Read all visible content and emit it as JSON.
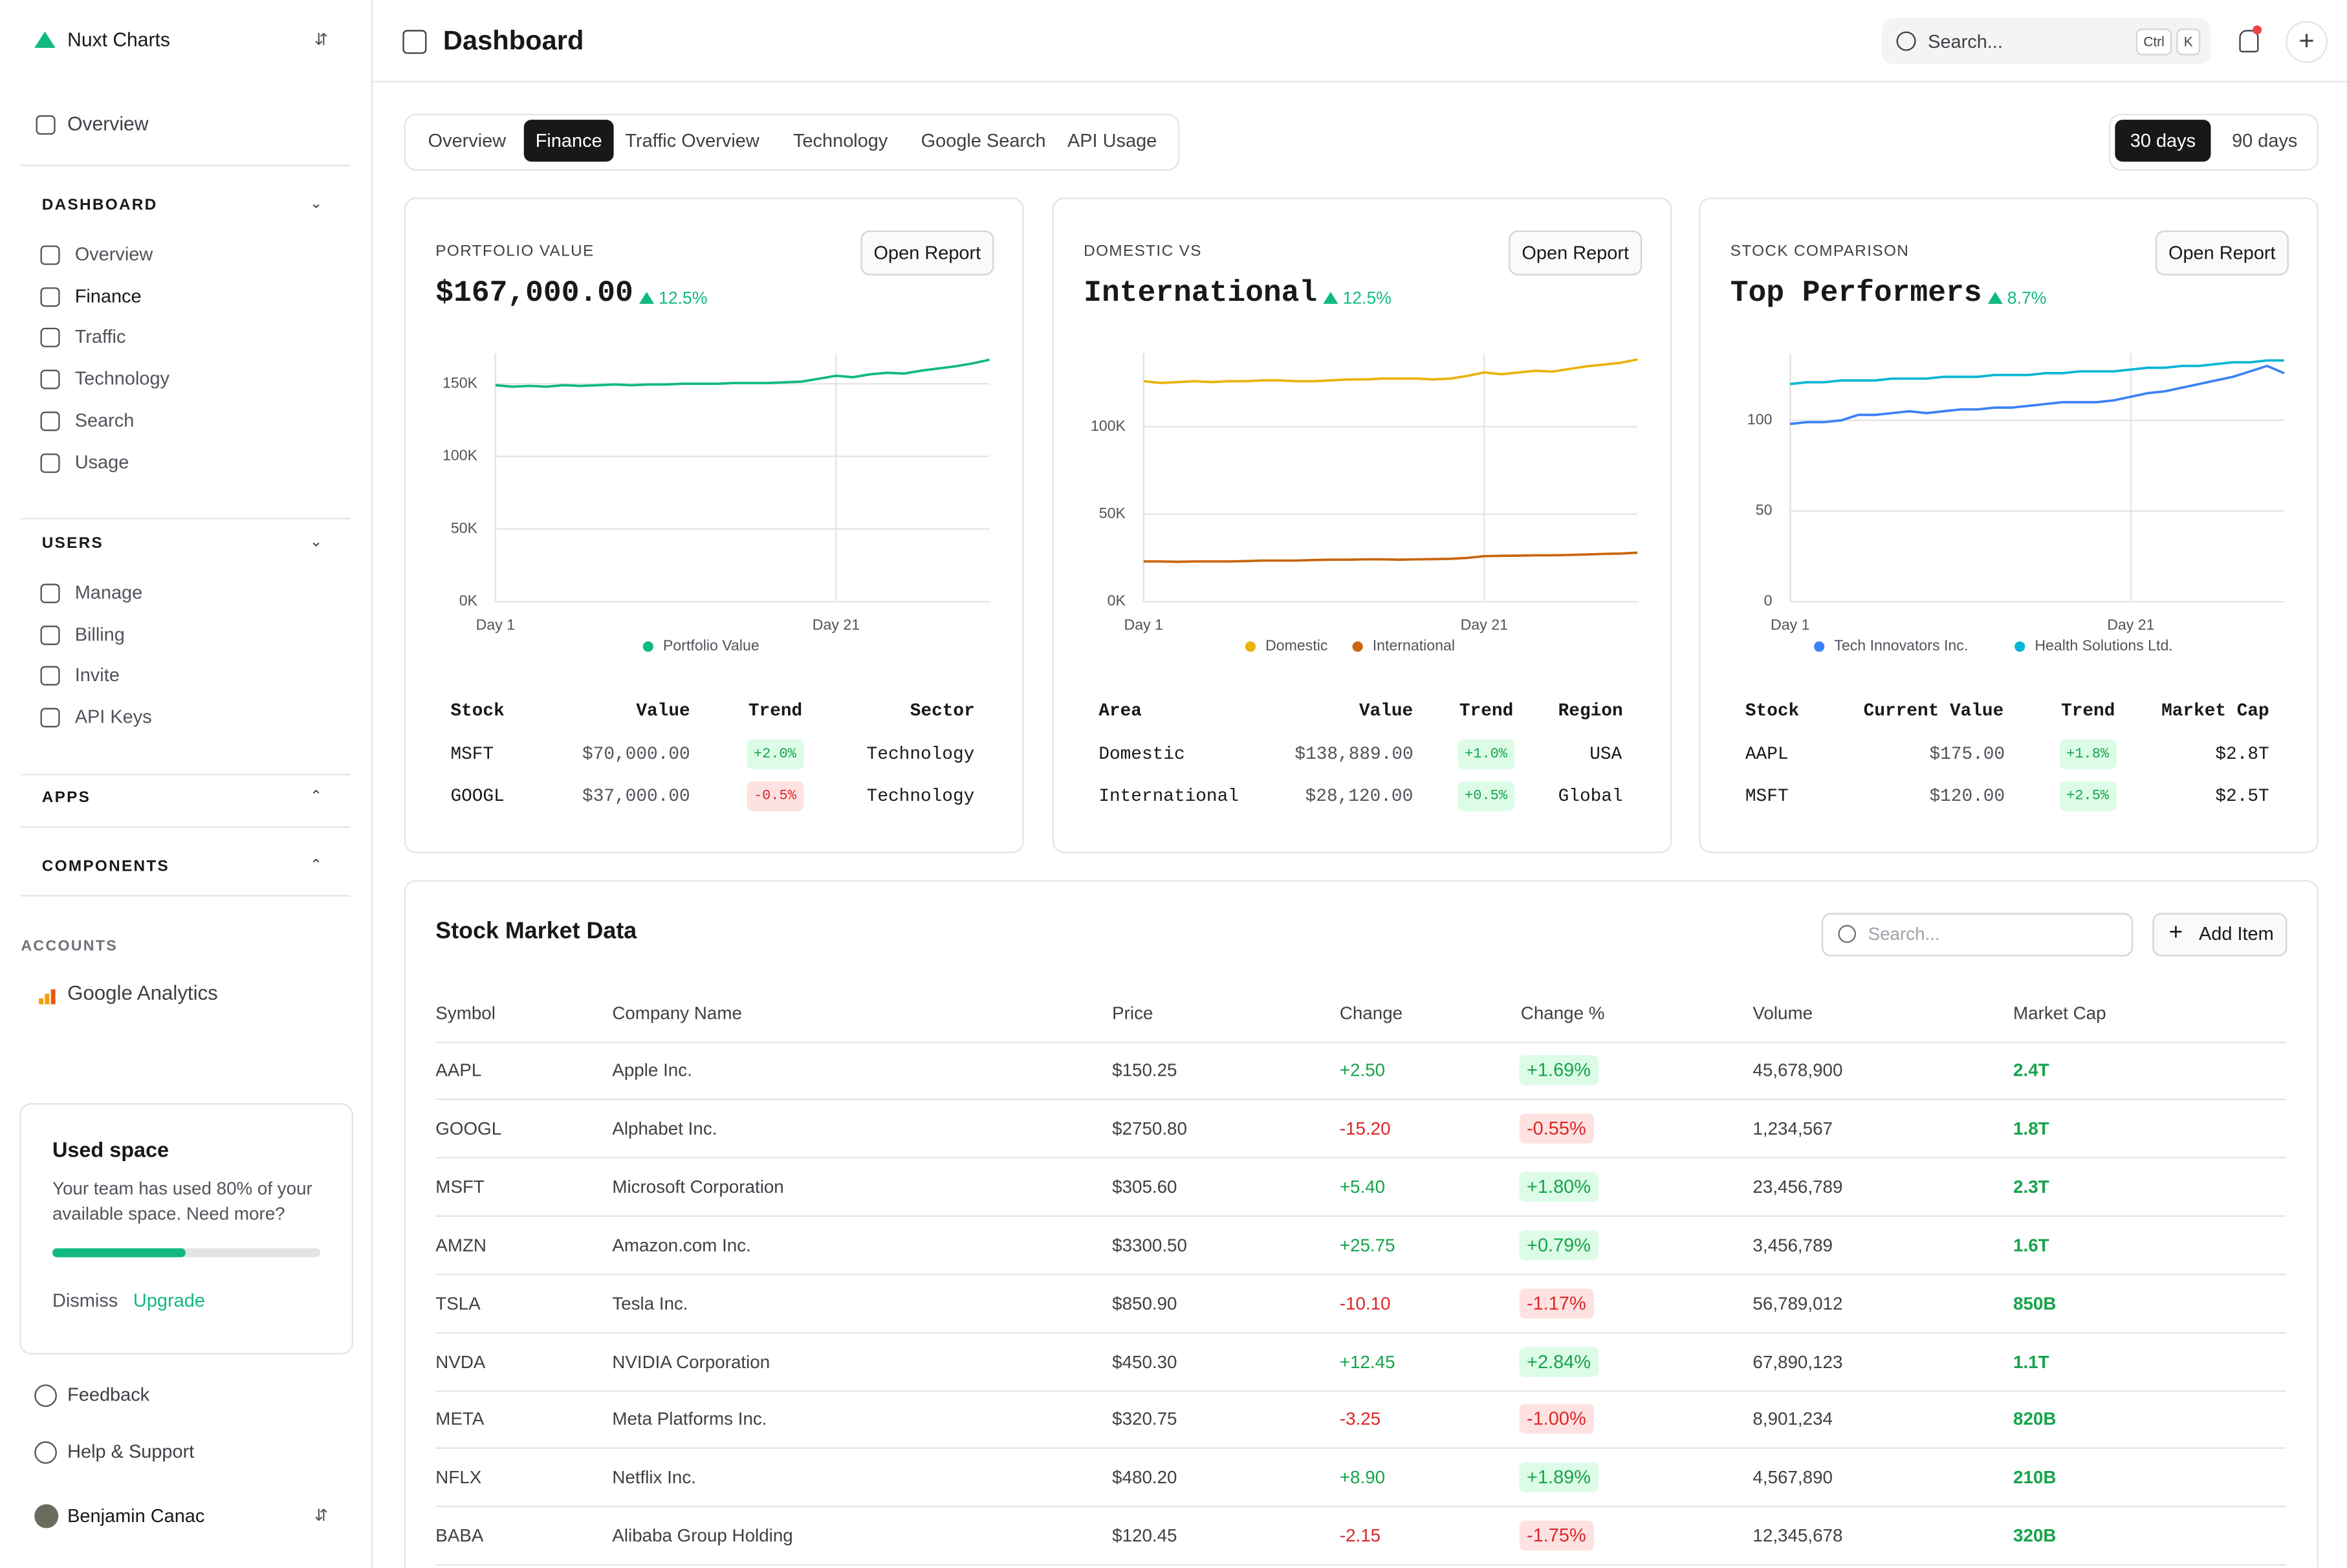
{
  "sidebar": {
    "brand": "Nuxt Charts",
    "top": [
      "Overview"
    ],
    "groups": [
      {
        "title": "DASHBOARD",
        "items": [
          "Overview",
          "Finance",
          "Traffic",
          "Technology",
          "Search",
          "Usage"
        ]
      },
      {
        "title": "USERS",
        "items": [
          "Manage",
          "Billing",
          "Invite",
          "API Keys"
        ]
      },
      {
        "title": "APPS"
      },
      {
        "title": "COMPONENTS"
      }
    ],
    "accounts": {
      "title": "ACCOUNTS",
      "items": [
        "Google Analytics"
      ]
    },
    "used_space": {
      "title": "Used space",
      "text": "Your team has used 80% of your available space. Need more?",
      "dismiss": "Dismiss",
      "upgrade": "Upgrade"
    },
    "links": [
      "Feedback",
      "Help & Support"
    ],
    "user": "Benjamin Canac"
  },
  "header": {
    "title": "Dashboard",
    "search": "Search...",
    "keys": [
      "Ctrl",
      "K"
    ]
  },
  "tabs": [
    "Overview",
    "Finance",
    "Traffic Overview",
    "Technology",
    "Google Search",
    "API Usage"
  ],
  "ranges": [
    "30 days",
    "90 days"
  ],
  "cards": [
    {
      "label": "PORTFOLIO VALUE",
      "title": "$167,000.00",
      "change": "12.5%",
      "button": "Open Report",
      "chart": {
        "type": "line",
        "categories": [
          "Day 1",
          null,
          null,
          null,
          null,
          null,
          null,
          null,
          null,
          null,
          null,
          null,
          null,
          null,
          null,
          null,
          null,
          null,
          null,
          null,
          "Day 21",
          null,
          null,
          null,
          null,
          null,
          null,
          null,
          null,
          null
        ],
        "series": [
          {
            "name": "Portfolio Value",
            "color": "#10b981",
            "values": [
              149000,
              148000,
              148500,
              148000,
              149000,
              148500,
              149000,
              149500,
              149000,
              149500,
              149500,
              150000,
              150000,
              150000,
              150500,
              150500,
              150500,
              151000,
              151500,
              153500,
              155500,
              154500,
              156500,
              157500,
              157000,
              159000,
              160500,
              162000,
              164000,
              166500
            ]
          }
        ],
        "ylim": [
          0,
          171000
        ],
        "yticks": [
          {
            "value": 0,
            "label": "0K"
          },
          {
            "value": 50000,
            "label": "50K"
          },
          {
            "value": 100000,
            "label": "100K"
          },
          {
            "value": 150000,
            "label": "150K"
          }
        ]
      },
      "table": {
        "headers": [
          "Stock",
          "Value",
          "Trend",
          "Sector"
        ],
        "rows": [
          [
            "MSFT",
            "$70,000.00",
            "+2.0%",
            "Technology"
          ],
          [
            "GOOGL",
            "$37,000.00",
            "-0.5%",
            "Technology"
          ]
        ]
      }
    },
    {
      "label": "DOMESTIC VS",
      "title": "International",
      "change": "12.5%",
      "button": "Open Report",
      "chart": {
        "type": "line",
        "categories": [
          "Day 1",
          null,
          null,
          null,
          null,
          null,
          null,
          null,
          null,
          null,
          null,
          null,
          null,
          null,
          null,
          null,
          null,
          null,
          null,
          null,
          "Day 21",
          null,
          null,
          null,
          null,
          null,
          null,
          null,
          null,
          null
        ],
        "series": [
          {
            "name": "Domestic",
            "color": "#eab308",
            "values": [
              126000,
              125000,
              125500,
              126000,
              125500,
              126000,
              126000,
              126500,
              126500,
              126000,
              126000,
              126500,
              127000,
              127000,
              127500,
              127500,
              127500,
              127000,
              127500,
              129000,
              131000,
              130000,
              131000,
              132000,
              131500,
              133000,
              134500,
              135500,
              136500,
              138500
            ]
          },
          {
            "name": "International",
            "color": "#c9650c",
            "values": [
              23000,
              23000,
              22800,
              23000,
              23000,
              23000,
              23200,
              23500,
              23500,
              23500,
              23800,
              24000,
              24000,
              24200,
              24200,
              24000,
              24200,
              24300,
              24500,
              25000,
              26000,
              26200,
              26300,
              26500,
              26500,
              26700,
              27000,
              27300,
              27500,
              28000
            ]
          }
        ],
        "ylim": [
          0,
          142000
        ],
        "yticks": [
          {
            "value": 0,
            "label": "0K"
          },
          {
            "value": 50000,
            "label": "50K"
          },
          {
            "value": 100000,
            "label": "100K"
          }
        ]
      },
      "table": {
        "headers": [
          "Area",
          "Value",
          "Trend",
          "Region"
        ],
        "rows": [
          [
            "Domestic",
            "$138,889.00",
            "+1.0%",
            "USA"
          ],
          [
            "International",
            "$28,120.00",
            "+0.5%",
            "Global"
          ]
        ]
      }
    },
    {
      "label": "STOCK COMPARISON",
      "title": "Top Performers",
      "change": "8.7%",
      "button": "Open Report",
      "chart": {
        "type": "line",
        "categories": [
          "Day 1",
          null,
          null,
          null,
          null,
          null,
          null,
          null,
          null,
          null,
          null,
          null,
          null,
          null,
          null,
          null,
          null,
          null,
          null,
          null,
          "Day 21",
          null,
          null,
          null,
          null,
          null,
          null,
          null,
          null,
          null
        ],
        "series": [
          {
            "name": "Tech Innovators Inc.",
            "color": "#3b82f6",
            "values": [
              98,
              99,
              99,
              100,
              103,
              103,
              104,
              105,
              104,
              105,
              106,
              106,
              107,
              107,
              108,
              109,
              110,
              110,
              110,
              111,
              113,
              115,
              116,
              118,
              120,
              122,
              124,
              127,
              130,
              126
            ]
          },
          {
            "name": "Health Solutions Ltd.",
            "color": "#06b6d4",
            "values": [
              120,
              121,
              121,
              122,
              122,
              122,
              123,
              123,
              123,
              124,
              124,
              124,
              125,
              125,
              125,
              126,
              126,
              127,
              127,
              127,
              128,
              129,
              129,
              130,
              130,
              131,
              132,
              132,
              133,
              133
            ]
          }
        ],
        "ylim": [
          0,
          137
        ],
        "yticks": [
          0,
          50,
          100
        ]
      },
      "table": {
        "headers": [
          "Stock",
          "Current Value",
          "Trend",
          "Market Cap"
        ],
        "rows": [
          [
            "AAPL",
            "$175.00",
            "+1.8%",
            "$2.8T"
          ],
          [
            "MSFT",
            "$120.00",
            "+2.5%",
            "$2.5T"
          ]
        ]
      }
    }
  ],
  "market": {
    "title": "Stock Market Data",
    "search": "Search...",
    "add": "Add Item",
    "headers": [
      "Symbol",
      "Company Name",
      "Price",
      "Change",
      "Change %",
      "Volume",
      "Market Cap"
    ],
    "rows": [
      [
        "AAPL",
        "Apple Inc.",
        "$150.25",
        "+2.50",
        "+1.69%",
        "45,678,900",
        "2.4T"
      ],
      [
        "GOOGL",
        "Alphabet Inc.",
        "$2750.80",
        "-15.20",
        "-0.55%",
        "1,234,567",
        "1.8T"
      ],
      [
        "MSFT",
        "Microsoft Corporation",
        "$305.60",
        "+5.40",
        "+1.80%",
        "23,456,789",
        "2.3T"
      ],
      [
        "AMZN",
        "Amazon.com Inc.",
        "$3300.50",
        "+25.75",
        "+0.79%",
        "3,456,789",
        "1.6T"
      ],
      [
        "TSLA",
        "Tesla Inc.",
        "$850.90",
        "-10.10",
        "-1.17%",
        "56,789,012",
        "850B"
      ],
      [
        "NVDA",
        "NVIDIA Corporation",
        "$450.30",
        "+12.45",
        "+2.84%",
        "67,890,123",
        "1.1T"
      ],
      [
        "META",
        "Meta Platforms Inc.",
        "$320.75",
        "-3.25",
        "-1.00%",
        "8,901,234",
        "820B"
      ],
      [
        "NFLX",
        "Netflix Inc.",
        "$480.20",
        "+8.90",
        "+1.89%",
        "4,567,890",
        "210B"
      ],
      [
        "BABA",
        "Alibaba Group Holding",
        "$120.45",
        "-2.15",
        "-1.75%",
        "12,345,678",
        "320B"
      ]
    ]
  }
}
